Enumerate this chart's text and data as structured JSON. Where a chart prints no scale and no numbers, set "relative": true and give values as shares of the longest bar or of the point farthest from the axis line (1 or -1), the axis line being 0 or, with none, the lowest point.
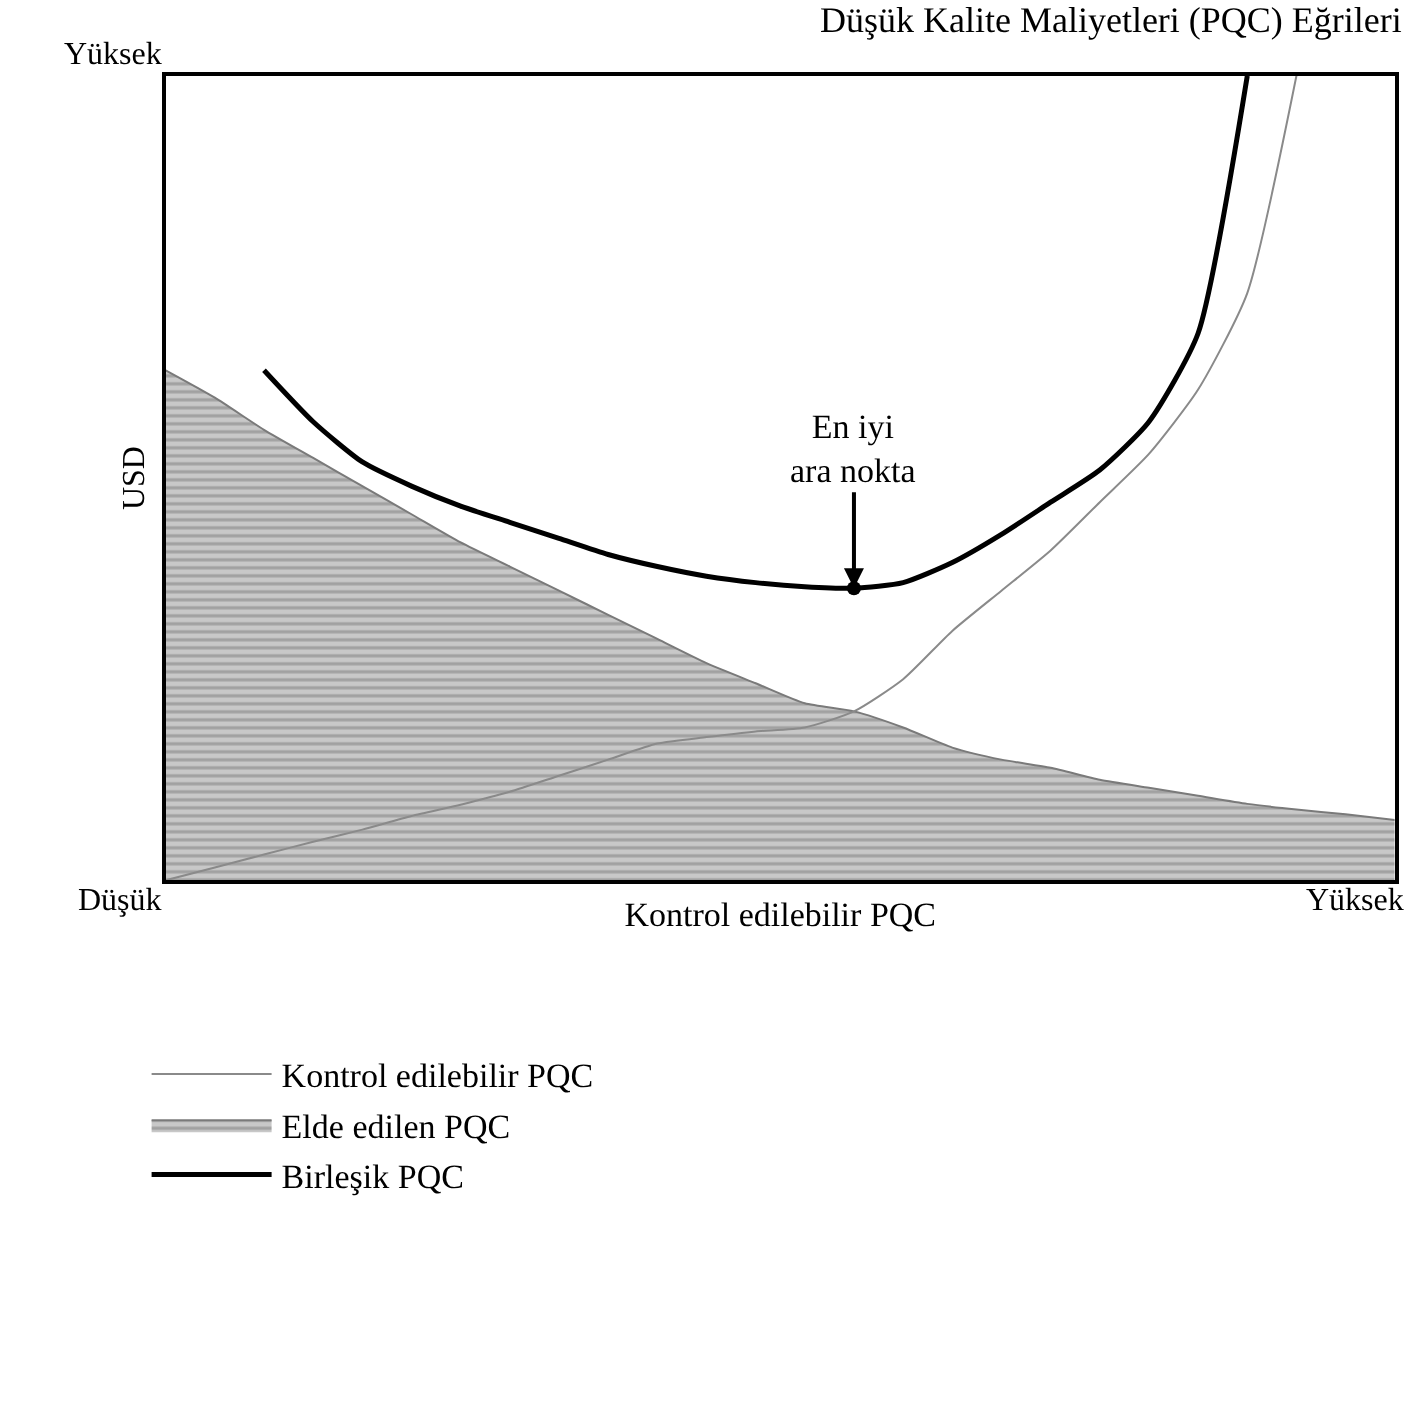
{
  "chart_data": {
    "type": "line",
    "relative": true,
    "title": "Düşük Kalite Maliyetleri (PQC) Eğrileri",
    "xlabel": "Kontrol edilebilir PQC",
    "ylabel": "USD",
    "tick_labels": false,
    "categories": [
      null,
      null,
      null,
      null,
      null,
      null,
      null,
      null,
      null,
      null,
      null,
      null,
      null,
      null,
      null,
      null,
      null,
      null,
      null,
      null,
      null,
      null,
      null,
      null,
      null,
      null
    ],
    "series": [
      {
        "name": "Kontrol edilebilir PQC",
        "color": "#8a8a8a",
        "values": [
          0,
          0.016,
          0.032,
          0.048,
          0.063,
          0.08,
          0.094,
          0.11,
          0.13,
          0.15,
          0.17,
          0.178,
          0.185,
          0.19,
          0.21,
          0.25,
          0.31,
          0.36,
          0.41,
          0.47,
          0.53,
          0.61,
          0.73,
          1.0,
          null,
          null
        ]
      },
      {
        "name": "Elde edilen PQC",
        "type": "area",
        "color": "#7a7a7a",
        "values": [
          0.634,
          0.6,
          0.56,
          0.525,
          0.49,
          0.455,
          0.42,
          0.39,
          0.36,
          0.33,
          0.3,
          0.27,
          0.245,
          0.22,
          0.21,
          0.19,
          0.165,
          0.15,
          0.14,
          0.125,
          0.115,
          0.105,
          0.095,
          0.088,
          0.082,
          0.075
        ]
      },
      {
        "name": "Birleşik PQC",
        "color": "#000000",
        "values": [
          null,
          null,
          0.634,
          0.57,
          0.52,
          0.49,
          0.465,
          0.445,
          0.425,
          0.405,
          0.39,
          0.378,
          0.37,
          0.365,
          0.363,
          0.37,
          0.395,
          0.43,
          0.47,
          0.51,
          0.57,
          0.68,
          1.0,
          null,
          null,
          null
        ]
      }
    ],
    "annotations": [
      "Yüksek",
      "Düşük",
      "Yüksek",
      "En iyi\nara nokta"
    ],
    "legend": "bottom"
  }
}
